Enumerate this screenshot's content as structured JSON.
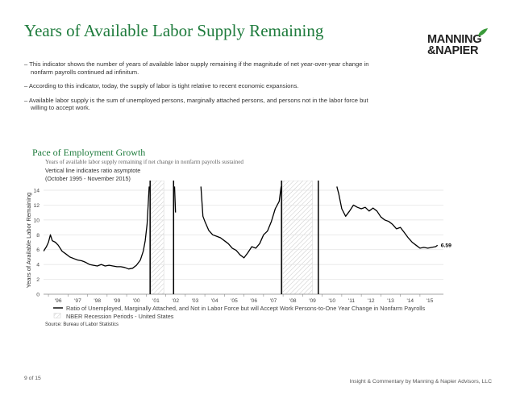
{
  "page": {
    "title": "Years of Available Labor Supply Remaining",
    "logo_line1": "MANNING",
    "logo_line2": "&NAPIER",
    "bullets": [
      "– This indicator shows the number of years of available labor supply remaining if the magnitude of net year-over-year change in nonfarm payrolls continued ad infinitum.",
      "– According to this indicator, today, the supply of labor is tight relative to recent economic expansions.",
      "– Available labor supply is the sum of unemployed persons, marginally attached persons, and persons not in the labor force but willing to accept work."
    ],
    "page_number": "9 of 15",
    "footer": "Insight & Commentary by Manning & Napier Advisors, LLC",
    "brand_green": "#1e7b3c"
  },
  "chart_data": {
    "type": "line",
    "title": "Pace of Employment Growth",
    "subtitle": "Years of available labor supply remaining if net change in nonfarm payrolls sustained",
    "note_line1": "Vertical line indicates ratio asymptote",
    "note_line2": "(October 1995 - November 2015)",
    "ylabel": "Years of Available Labor Remaining",
    "ylim": [
      0,
      14
    ],
    "xlim": [
      1995.75,
      2016.2
    ],
    "yticks": [
      "0",
      "2",
      "4",
      "6",
      "8",
      "10",
      "12",
      "14"
    ],
    "xticks": [
      "'96",
      "'97",
      "'98",
      "'99",
      "'00",
      "'01",
      "'02",
      "'03",
      "'04",
      "'05",
      "'06",
      "'07",
      "'08",
      "'09",
      "'10",
      "'11",
      "'12",
      "'13",
      "'14",
      "'15"
    ],
    "grid": true,
    "last_value_label": "6.59",
    "series": [
      {
        "name": "Ratio of Unemployed, Marginally Attached, and Not in Labor Force but will Accept Work Persons-to-One Year Change in Nonfarm Payrolls",
        "color": "#000000",
        "segments": [
          [
            [
              1995.75,
              5.8
            ],
            [
              1995.9,
              6.4
            ],
            [
              1996.0,
              7.0
            ],
            [
              1996.1,
              8.0
            ],
            [
              1996.2,
              7.2
            ],
            [
              1996.35,
              7.0
            ],
            [
              1996.5,
              6.6
            ],
            [
              1996.7,
              5.8
            ],
            [
              1996.9,
              5.4
            ],
            [
              1997.1,
              5.0
            ],
            [
              1997.3,
              4.8
            ],
            [
              1997.5,
              4.6
            ],
            [
              1997.7,
              4.5
            ],
            [
              1997.9,
              4.3
            ],
            [
              1998.1,
              4.0
            ],
            [
              1998.3,
              3.9
            ],
            [
              1998.5,
              3.8
            ],
            [
              1998.7,
              4.0
            ],
            [
              1998.9,
              3.8
            ],
            [
              1999.1,
              3.9
            ],
            [
              1999.3,
              3.8
            ],
            [
              1999.5,
              3.7
            ],
            [
              1999.7,
              3.7
            ],
            [
              1999.9,
              3.6
            ],
            [
              2000.1,
              3.4
            ],
            [
              2000.3,
              3.5
            ],
            [
              2000.5,
              3.9
            ],
            [
              2000.7,
              4.6
            ],
            [
              2000.85,
              5.8
            ],
            [
              2000.95,
              7.2
            ],
            [
              2001.05,
              9.5
            ],
            [
              2001.15,
              14.5
            ]
          ],
          [
            [
              2002.45,
              14.5
            ],
            [
              2002.5,
              11.0
            ]
          ],
          [
            [
              2003.8,
              14.5
            ],
            [
              2003.9,
              10.5
            ],
            [
              2004.0,
              9.8
            ],
            [
              2004.2,
              8.6
            ],
            [
              2004.4,
              8.0
            ],
            [
              2004.6,
              7.8
            ],
            [
              2004.8,
              7.6
            ],
            [
              2005.0,
              7.2
            ],
            [
              2005.2,
              6.8
            ],
            [
              2005.4,
              6.2
            ],
            [
              2005.6,
              5.9
            ],
            [
              2005.8,
              5.3
            ],
            [
              2006.0,
              4.9
            ],
            [
              2006.2,
              5.6
            ],
            [
              2006.4,
              6.4
            ],
            [
              2006.6,
              6.2
            ],
            [
              2006.8,
              6.8
            ],
            [
              2007.0,
              8.0
            ],
            [
              2007.2,
              8.5
            ],
            [
              2007.4,
              9.8
            ],
            [
              2007.6,
              11.5
            ],
            [
              2007.8,
              12.5
            ],
            [
              2007.9,
              14.5
            ]
          ],
          [
            [
              2010.75,
              14.5
            ],
            [
              2010.85,
              13.5
            ],
            [
              2011.0,
              11.5
            ],
            [
              2011.2,
              10.5
            ],
            [
              2011.4,
              11.2
            ],
            [
              2011.6,
              12.0
            ],
            [
              2011.8,
              11.7
            ],
            [
              2012.0,
              11.5
            ],
            [
              2012.2,
              11.7
            ],
            [
              2012.4,
              11.2
            ],
            [
              2012.6,
              11.6
            ],
            [
              2012.8,
              11.2
            ],
            [
              2013.0,
              10.4
            ],
            [
              2013.2,
              10.0
            ],
            [
              2013.4,
              9.8
            ],
            [
              2013.6,
              9.4
            ],
            [
              2013.8,
              8.8
            ],
            [
              2014.0,
              9.0
            ],
            [
              2014.2,
              8.3
            ],
            [
              2014.4,
              7.6
            ],
            [
              2014.6,
              7.0
            ],
            [
              2014.8,
              6.6
            ],
            [
              2015.0,
              6.2
            ],
            [
              2015.2,
              6.3
            ],
            [
              2015.4,
              6.2
            ],
            [
              2015.6,
              6.3
            ],
            [
              2015.8,
              6.4
            ],
            [
              2015.9,
              6.59
            ]
          ]
        ]
      },
      {
        "name": "NBER Recession Periods - United States",
        "color": "#bbbbbb",
        "periods": [
          [
            2001.25,
            2001.9
          ],
          [
            2007.98,
            2009.5
          ]
        ]
      }
    ],
    "asymptotes": [
      2001.2,
      2002.4,
      2007.92,
      2009.8
    ],
    "source": "Source: Bureau of Labor Statistics"
  }
}
